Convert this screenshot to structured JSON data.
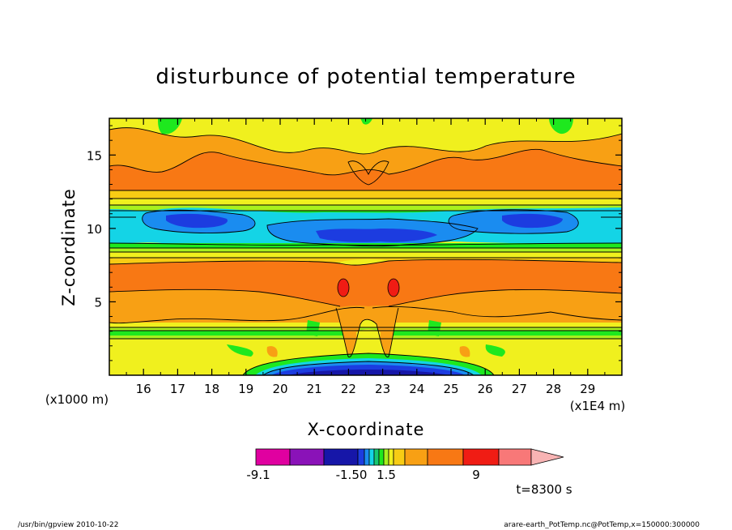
{
  "chart_data": {
    "type": "heatmap",
    "title": "disturbunce of potential temperature",
    "xlabel": "X-coordinate",
    "ylabel": "Z-coordinate",
    "x_unit_label": "(x1E4 m)",
    "y_unit_label": "(x1000 m)",
    "x_ticks": [
      "16",
      "17",
      "18",
      "19",
      "20",
      "21",
      "22",
      "23",
      "24",
      "25",
      "26",
      "27",
      "28",
      "29"
    ],
    "y_ticks": [
      "5",
      "10",
      "15"
    ],
    "xlim": [
      15.0,
      30.0
    ],
    "ylim": [
      0,
      17.5
    ],
    "colorbar": {
      "tick_labels": [
        "-9.1",
        "-1.50",
        "1.5",
        "9"
      ],
      "colors": [
        "#e000a0",
        "#8a12b8",
        "#1616a8",
        "#1c3ce0",
        "#1a8cf0",
        "#14d4e6",
        "#16c872",
        "#1ee81e",
        "#a8f01e",
        "#f0f01e",
        "#f8cc14",
        "#f8a014",
        "#f87814",
        "#f01c14",
        "#f87878",
        "#f8b4b4"
      ],
      "arrow_color": "#f8b4b4"
    },
    "annotation": "t=8300 s",
    "footer_left": "/usr/bin/gpview   2010-10-22",
    "footer_right": "arare-earth_PotTemp.nc@PotTemp,x=150000:300000"
  }
}
